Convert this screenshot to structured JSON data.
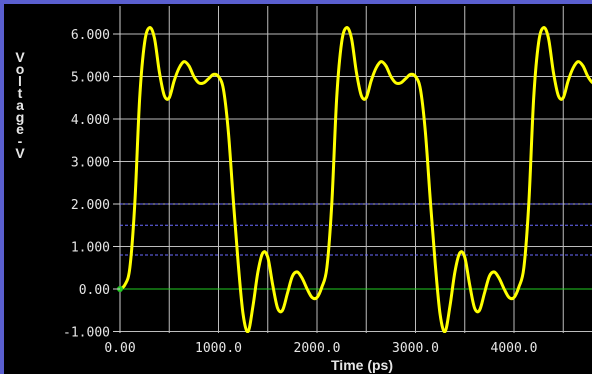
{
  "chart_data": {
    "type": "line",
    "xlabel": "Time (ps)",
    "ylabel": "Voltage-V",
    "xlim": [
      0,
      4950
    ],
    "ylim": [
      -1.0,
      6.75
    ],
    "x_ticks": [
      0,
      1000,
      2000,
      3000,
      4000
    ],
    "x_tick_labels": [
      "0.00",
      "1000.0",
      "2000.0",
      "3000.0",
      "4000.0"
    ],
    "y_ticks": [
      6,
      5,
      4,
      3,
      2,
      1,
      0,
      -1
    ],
    "y_tick_labels": [
      "6.000",
      "5.000",
      "4.000",
      "3.000",
      "2.000",
      "1.000",
      "0.00",
      "-1.000"
    ],
    "grid": true,
    "reference_lines": [
      {
        "y": 0,
        "color": "#22cc22",
        "style": "solid"
      },
      {
        "y": 0.8,
        "color": "#6a6aff",
        "style": "dashed"
      },
      {
        "y": 1.5,
        "color": "#6a6aff",
        "style": "dashed"
      },
      {
        "y": 2.0,
        "color": "#6a6aff",
        "style": "dashed"
      }
    ],
    "series": [
      {
        "color": "#ffff00",
        "points": [
          [
            0,
            0
          ],
          [
            50,
            0.1
          ],
          [
            100,
            0.5
          ],
          [
            150,
            2.0
          ],
          [
            200,
            4.5
          ],
          [
            250,
            5.8
          ],
          [
            300,
            6.15
          ],
          [
            350,
            5.9
          ],
          [
            400,
            5.1
          ],
          [
            450,
            4.55
          ],
          [
            500,
            4.5
          ],
          [
            550,
            4.9
          ],
          [
            600,
            5.2
          ],
          [
            650,
            5.35
          ],
          [
            700,
            5.25
          ],
          [
            750,
            5.0
          ],
          [
            800,
            4.85
          ],
          [
            850,
            4.85
          ],
          [
            900,
            4.95
          ],
          [
            950,
            5.05
          ],
          [
            1000,
            5.0
          ],
          [
            1050,
            4.7
          ],
          [
            1100,
            3.7
          ],
          [
            1150,
            2.1
          ],
          [
            1200,
            0.6
          ],
          [
            1250,
            -0.6
          ],
          [
            1300,
            -1.0
          ],
          [
            1350,
            -0.4
          ],
          [
            1400,
            0.4
          ],
          [
            1450,
            0.85
          ],
          [
            1500,
            0.75
          ],
          [
            1550,
            0.1
          ],
          [
            1600,
            -0.45
          ],
          [
            1650,
            -0.5
          ],
          [
            1700,
            -0.1
          ],
          [
            1750,
            0.3
          ],
          [
            1800,
            0.4
          ],
          [
            1850,
            0.25
          ],
          [
            1900,
            0.0
          ],
          [
            1950,
            -0.2
          ],
          [
            2000,
            -0.2
          ],
          [
            2050,
            0.05
          ],
          [
            2100,
            0.5
          ],
          [
            2150,
            2.0
          ],
          [
            2200,
            4.5
          ],
          [
            2250,
            5.8
          ],
          [
            2300,
            6.15
          ],
          [
            2350,
            5.9
          ],
          [
            2400,
            5.1
          ],
          [
            2450,
            4.55
          ],
          [
            2500,
            4.5
          ],
          [
            2550,
            4.9
          ],
          [
            2600,
            5.2
          ],
          [
            2650,
            5.35
          ],
          [
            2700,
            5.25
          ],
          [
            2750,
            5.0
          ],
          [
            2800,
            4.85
          ],
          [
            2850,
            4.85
          ],
          [
            2900,
            4.95
          ],
          [
            2950,
            5.05
          ],
          [
            3000,
            5.0
          ],
          [
            3050,
            4.7
          ],
          [
            3100,
            3.7
          ],
          [
            3150,
            2.1
          ],
          [
            3200,
            0.6
          ],
          [
            3250,
            -0.6
          ],
          [
            3300,
            -1.0
          ],
          [
            3350,
            -0.4
          ],
          [
            3400,
            0.4
          ],
          [
            3450,
            0.85
          ],
          [
            3500,
            0.75
          ],
          [
            3550,
            0.1
          ],
          [
            3600,
            -0.45
          ],
          [
            3650,
            -0.5
          ],
          [
            3700,
            -0.1
          ],
          [
            3750,
            0.3
          ],
          [
            3800,
            0.4
          ],
          [
            3850,
            0.25
          ],
          [
            3900,
            0.0
          ],
          [
            3950,
            -0.2
          ],
          [
            4000,
            -0.2
          ],
          [
            4050,
            0.05
          ],
          [
            4100,
            0.5
          ],
          [
            4150,
            2.0
          ],
          [
            4200,
            4.5
          ],
          [
            4250,
            5.8
          ],
          [
            4300,
            6.15
          ],
          [
            4350,
            5.9
          ],
          [
            4400,
            5.1
          ],
          [
            4450,
            4.55
          ],
          [
            4500,
            4.5
          ],
          [
            4550,
            4.9
          ],
          [
            4600,
            5.2
          ],
          [
            4650,
            5.35
          ],
          [
            4700,
            5.25
          ],
          [
            4750,
            5.0
          ],
          [
            4800,
            4.85
          ],
          [
            4850,
            4.85
          ],
          [
            4900,
            4.9
          ],
          [
            4950,
            4.95
          ]
        ]
      }
    ]
  }
}
